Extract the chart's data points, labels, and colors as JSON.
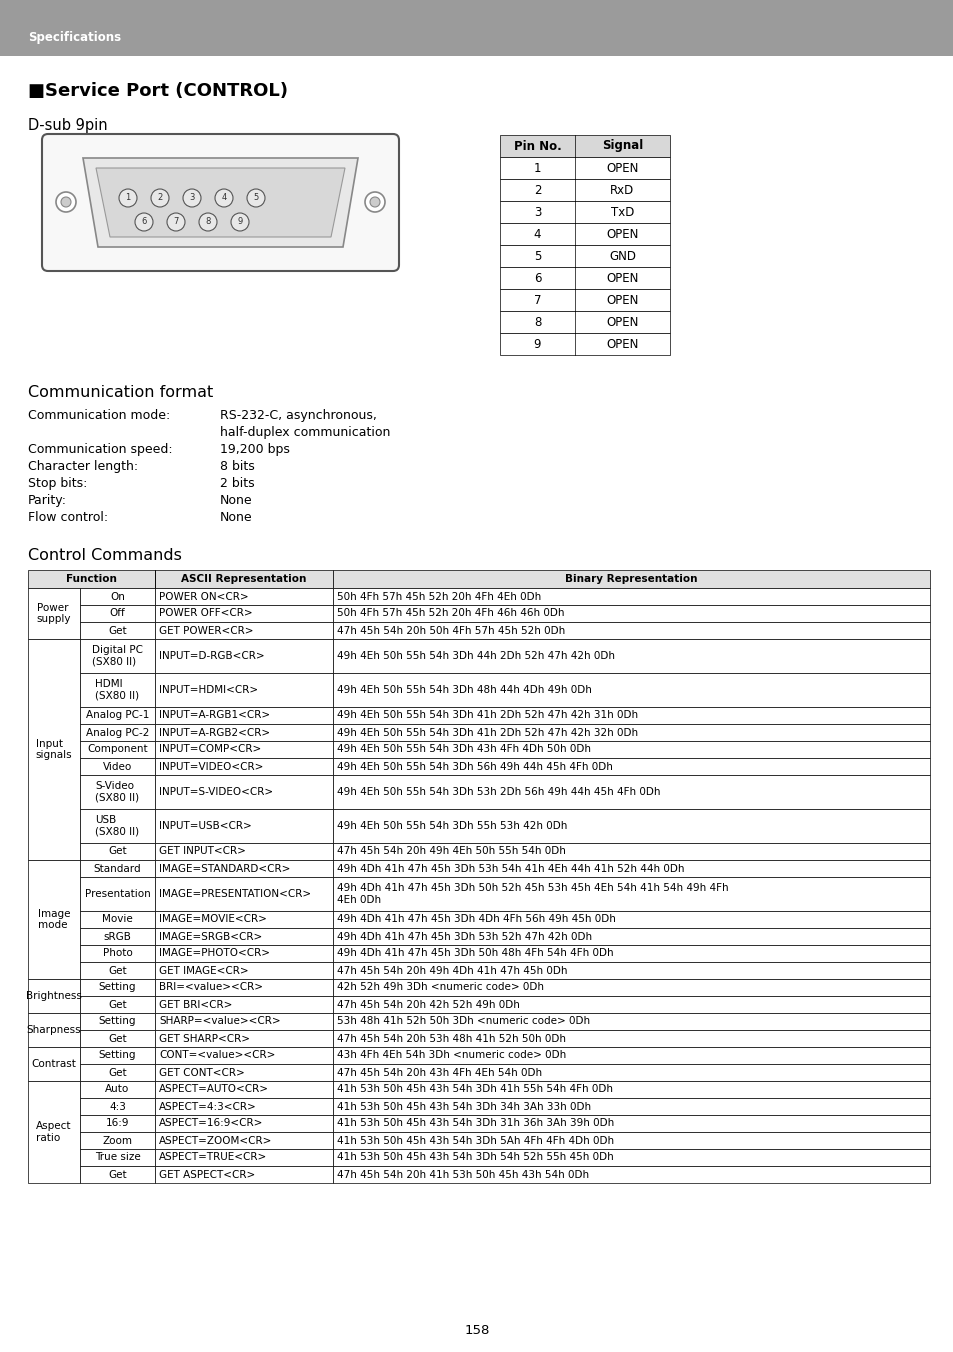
{
  "header_bg": "#9B9B9B",
  "header_text": "Specifications",
  "header_text_color": "#FFFFFF",
  "page_bg": "#FFFFFF",
  "title": "■Service Port (CONTROL)",
  "subtitle": "D-sub 9pin",
  "pin_table_headers": [
    "Pin No.",
    "Signal"
  ],
  "pin_table_rows": [
    [
      "1",
      "OPEN"
    ],
    [
      "2",
      "RxD"
    ],
    [
      "3",
      "TxD"
    ],
    [
      "4",
      "OPEN"
    ],
    [
      "5",
      "GND"
    ],
    [
      "6",
      "OPEN"
    ],
    [
      "7",
      "OPEN"
    ],
    [
      "8",
      "OPEN"
    ],
    [
      "9",
      "OPEN"
    ]
  ],
  "comm_format_title": "Communication format",
  "comm_lines": [
    [
      "Communication mode:",
      "RS-232-C, asynchronous,",
      "half-duplex communication"
    ],
    [
      "Communication speed:",
      "19,200 bps",
      ""
    ],
    [
      "Character length:",
      "8 bits",
      ""
    ],
    [
      "Stop bits:",
      "2 bits",
      ""
    ],
    [
      "Parity:",
      "None",
      ""
    ],
    [
      "Flow control:",
      "None",
      ""
    ]
  ],
  "control_commands_title": "Control Commands",
  "table_rows": [
    [
      "Power\nsupply",
      "On",
      "POWER ON<CR>",
      "50h 4Fh 57h 45h 52h 20h 4Fh 4Eh 0Dh"
    ],
    [
      "Power\nsupply",
      "Off",
      "POWER OFF<CR>",
      "50h 4Fh 57h 45h 52h 20h 4Fh 46h 46h 0Dh"
    ],
    [
      "Power\nsupply",
      "Get",
      "GET POWER<CR>",
      "47h 45h 54h 20h 50h 4Fh 57h 45h 52h 0Dh"
    ],
    [
      "Input\nsignals",
      "Digital PC\n(SX80 II)",
      "INPUT=D-RGB<CR>",
      "49h 4Eh 50h 55h 54h 3Dh 44h 2Dh 52h 47h 42h 0Dh"
    ],
    [
      "Input\nsignals",
      "HDMI\n(SX80 II)",
      "INPUT=HDMI<CR>",
      "49h 4Eh 50h 55h 54h 3Dh 48h 44h 4Dh 49h 0Dh"
    ],
    [
      "Input\nsignals",
      "Analog PC-1",
      "INPUT=A-RGB1<CR>",
      "49h 4Eh 50h 55h 54h 3Dh 41h 2Dh 52h 47h 42h 31h 0Dh"
    ],
    [
      "Input\nsignals",
      "Analog PC-2",
      "INPUT=A-RGB2<CR>",
      "49h 4Eh 50h 55h 54h 3Dh 41h 2Dh 52h 47h 42h 32h 0Dh"
    ],
    [
      "Input\nsignals",
      "Component",
      "INPUT=COMP<CR>",
      "49h 4Eh 50h 55h 54h 3Dh 43h 4Fh 4Dh 50h 0Dh"
    ],
    [
      "Input\nsignals",
      "Video",
      "INPUT=VIDEO<CR>",
      "49h 4Eh 50h 55h 54h 3Dh 56h 49h 44h 45h 4Fh 0Dh"
    ],
    [
      "Input\nsignals",
      "S-Video\n(SX80 II)",
      "INPUT=S-VIDEO<CR>",
      "49h 4Eh 50h 55h 54h 3Dh 53h 2Dh 56h 49h 44h 45h 4Fh 0Dh"
    ],
    [
      "Input\nsignals",
      "USB\n(SX80 II)",
      "INPUT=USB<CR>",
      "49h 4Eh 50h 55h 54h 3Dh 55h 53h 42h 0Dh"
    ],
    [
      "Input\nsignals",
      "Get",
      "GET INPUT<CR>",
      "47h 45h 54h 20h 49h 4Eh 50h 55h 54h 0Dh"
    ],
    [
      "Image\nmode",
      "Standard",
      "IMAGE=STANDARD<CR>",
      "49h 4Dh 41h 47h 45h 3Dh 53h 54h 41h 4Eh 44h 41h 52h 44h 0Dh"
    ],
    [
      "Image\nmode",
      "Presentation",
      "IMAGE=PRESENTATION<CR>",
      "49h 4Dh 41h 47h 45h 3Dh 50h 52h 45h 53h 45h 4Eh 54h 41h 54h 49h 4Fh\n4Eh 0Dh"
    ],
    [
      "Image\nmode",
      "Movie",
      "IMAGE=MOVIE<CR>",
      "49h 4Dh 41h 47h 45h 3Dh 4Dh 4Fh 56h 49h 45h 0Dh"
    ],
    [
      "Image\nmode",
      "sRGB",
      "IMAGE=SRGB<CR>",
      "49h 4Dh 41h 47h 45h 3Dh 53h 52h 47h 42h 0Dh"
    ],
    [
      "Image\nmode",
      "Photo",
      "IMAGE=PHOTO<CR>",
      "49h 4Dh 41h 47h 45h 3Dh 50h 48h 4Fh 54h 4Fh 0Dh"
    ],
    [
      "Image\nmode",
      "Get",
      "GET IMAGE<CR>",
      "47h 45h 54h 20h 49h 4Dh 41h 47h 45h 0Dh"
    ],
    [
      "Brightness",
      "Setting",
      "BRI=<value><CR>",
      "42h 52h 49h 3Dh <numeric code> 0Dh"
    ],
    [
      "Brightness",
      "Get",
      "GET BRI<CR>",
      "47h 45h 54h 20h 42h 52h 49h 0Dh"
    ],
    [
      "Sharpness",
      "Setting",
      "SHARP=<value><CR>",
      "53h 48h 41h 52h 50h 3Dh <numeric code> 0Dh"
    ],
    [
      "Sharpness",
      "Get",
      "GET SHARP<CR>",
      "47h 45h 54h 20h 53h 48h 41h 52h 50h 0Dh"
    ],
    [
      "Contrast",
      "Setting",
      "CONT=<value><CR>",
      "43h 4Fh 4Eh 54h 3Dh <numeric code> 0Dh"
    ],
    [
      "Contrast",
      "Get",
      "GET CONT<CR>",
      "47h 45h 54h 20h 43h 4Fh 4Eh 54h 0Dh"
    ],
    [
      "Aspect\nratio",
      "Auto",
      "ASPECT=AUTO<CR>",
      "41h 53h 50h 45h 43h 54h 3Dh 41h 55h 54h 4Fh 0Dh"
    ],
    [
      "Aspect\nratio",
      "4:3",
      "ASPECT=4:3<CR>",
      "41h 53h 50h 45h 43h 54h 3Dh 34h 3Ah 33h 0Dh"
    ],
    [
      "Aspect\nratio",
      "16:9",
      "ASPECT=16:9<CR>",
      "41h 53h 50h 45h 43h 54h 3Dh 31h 36h 3Ah 39h 0Dh"
    ],
    [
      "Aspect\nratio",
      "Zoom",
      "ASPECT=ZOOM<CR>",
      "41h 53h 50h 45h 43h 54h 3Dh 5Ah 4Fh 4Fh 4Dh 0Dh"
    ],
    [
      "Aspect\nratio",
      "True size",
      "ASPECT=TRUE<CR>",
      "41h 53h 50h 45h 43h 54h 3Dh 54h 52h 55h 45h 0Dh"
    ],
    [
      "Aspect\nratio",
      "Get",
      "GET ASPECT<CR>",
      "47h 45h 54h 20h 41h 53h 50h 45h 43h 54h 0Dh"
    ]
  ],
  "page_number": "158"
}
